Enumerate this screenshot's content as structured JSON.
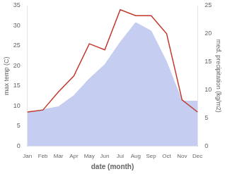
{
  "chart_data": {
    "type": "line",
    "categories": [
      "Jan",
      "Feb",
      "Mar",
      "Apr",
      "May",
      "Jun",
      "Jul",
      "Aug",
      "Sep",
      "Oct",
      "Nov",
      "Dec"
    ],
    "series": [
      {
        "type": "area",
        "color": "#c5cef0",
        "axis": "y2",
        "values": [
          6.0,
          6.5,
          7.0,
          9.0,
          12.0,
          14.5,
          18.5,
          22.0,
          20.5,
          15.0,
          8.0,
          8.0
        ]
      },
      {
        "type": "line",
        "color": "#c0392b",
        "values": [
          8.5,
          9.0,
          13.5,
          17.5,
          25.5,
          24.0,
          34.0,
          32.5,
          32.5,
          28.0,
          11.5,
          8.5
        ]
      }
    ],
    "xlabel": "date (month)",
    "ylabel": "max temp (C)",
    "y2label": "med. precipitation (kg/m2)",
    "ylim": [
      0,
      35
    ],
    "yticks": [
      0,
      5,
      10,
      15,
      20,
      25,
      30,
      35
    ],
    "y2lim": [
      0,
      25
    ],
    "y2ticks": [
      0,
      5,
      10,
      15,
      20,
      25
    ],
    "grid": false
  }
}
